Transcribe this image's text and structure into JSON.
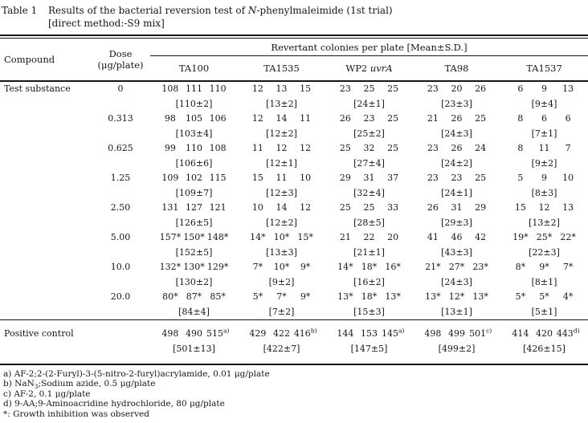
{
  "title": {
    "label": "Table 1",
    "line1_pre": "Results of the bacterial reversion test of ",
    "line1_italic": "N",
    "line1_post": "-phenylmaleimide (1st trial)",
    "line2": "[direct method:-S9 mix]"
  },
  "header": {
    "compound": "Compound",
    "dose_line1": "Dose",
    "dose_line2": "(μg/plate)",
    "span_label": "Revertant colonies per plate [Mean±S.D.]",
    "strains": [
      {
        "plain": "TA100",
        "italic": ""
      },
      {
        "plain": "TA1535",
        "italic": ""
      },
      {
        "plain": "WP2 ",
        "italic": "uvrA"
      },
      {
        "plain": "TA98",
        "italic": ""
      },
      {
        "plain": "TA1537",
        "italic": ""
      }
    ]
  },
  "body": {
    "compound_label": "Test substance",
    "rows": [
      {
        "dose": "0",
        "cells": [
          {
            "values": [
              "108",
              "111",
              "110"
            ],
            "mean": "[110±2]"
          },
          {
            "values": [
              "12",
              "13",
              "15"
            ],
            "mean": "[13±2]"
          },
          {
            "values": [
              "23",
              "25",
              "25"
            ],
            "mean": "[24±1]"
          },
          {
            "values": [
              "23",
              "20",
              "26"
            ],
            "mean": "[23±3]"
          },
          {
            "values": [
              "6",
              "9",
              "13"
            ],
            "mean": "[9±4]"
          }
        ]
      },
      {
        "dose": "0.313",
        "cells": [
          {
            "values": [
              "98",
              "105",
              "106"
            ],
            "mean": "[103±4]"
          },
          {
            "values": [
              "12",
              "14",
              "11"
            ],
            "mean": "[12±2]"
          },
          {
            "values": [
              "26",
              "23",
              "25"
            ],
            "mean": "[25±2]"
          },
          {
            "values": [
              "21",
              "26",
              "25"
            ],
            "mean": "[24±3]"
          },
          {
            "values": [
              "8",
              "6",
              "6"
            ],
            "mean": "[7±1]"
          }
        ]
      },
      {
        "dose": "0.625",
        "cells": [
          {
            "values": [
              "99",
              "110",
              "108"
            ],
            "mean": "[106±6]"
          },
          {
            "values": [
              "11",
              "12",
              "12"
            ],
            "mean": "[12±1]"
          },
          {
            "values": [
              "25",
              "32",
              "25"
            ],
            "mean": "[27±4]"
          },
          {
            "values": [
              "23",
              "26",
              "24"
            ],
            "mean": "[24±2]"
          },
          {
            "values": [
              "8",
              "11",
              "7"
            ],
            "mean": "[9±2]"
          }
        ]
      },
      {
        "dose": "1.25",
        "cells": [
          {
            "values": [
              "109",
              "102",
              "115"
            ],
            "mean": "[109±7]"
          },
          {
            "values": [
              "15",
              "11",
              "10"
            ],
            "mean": "[12±3]"
          },
          {
            "values": [
              "29",
              "31",
              "37"
            ],
            "mean": "[32±4]"
          },
          {
            "values": [
              "23",
              "23",
              "25"
            ],
            "mean": "[24±1]"
          },
          {
            "values": [
              "5",
              "9",
              "10"
            ],
            "mean": "[8±3]"
          }
        ]
      },
      {
        "dose": "2.50",
        "cells": [
          {
            "values": [
              "131",
              "127",
              "121"
            ],
            "mean": "[126±5]"
          },
          {
            "values": [
              "10",
              "14",
              "12"
            ],
            "mean": "[12±2]"
          },
          {
            "values": [
              "25",
              "25",
              "33"
            ],
            "mean": "[28±5]"
          },
          {
            "values": [
              "26",
              "31",
              "29"
            ],
            "mean": "[29±3]"
          },
          {
            "values": [
              "15",
              "12",
              "13"
            ],
            "mean": "[13±2]"
          }
        ]
      },
      {
        "dose": "5.00",
        "cells": [
          {
            "values": [
              "157*",
              "150*",
              "148*"
            ],
            "mean": "[152±5]"
          },
          {
            "values": [
              "14*",
              "10*",
              "15*"
            ],
            "mean": "[13±3]"
          },
          {
            "values": [
              "21",
              "22",
              "20"
            ],
            "mean": "[21±1]"
          },
          {
            "values": [
              "41",
              "46",
              "42"
            ],
            "mean": "[43±3]"
          },
          {
            "values": [
              "19*",
              "25*",
              "22*"
            ],
            "mean": "[22±3]"
          }
        ]
      },
      {
        "dose": "10.0",
        "cells": [
          {
            "values": [
              "132*",
              "130*",
              "129*"
            ],
            "mean": "[130±2]"
          },
          {
            "values": [
              "7*",
              "10*",
              "9*"
            ],
            "mean": "[9±2]"
          },
          {
            "values": [
              "14*",
              "18*",
              "16*"
            ],
            "mean": "[16±2]"
          },
          {
            "values": [
              "21*",
              "27*",
              "23*"
            ],
            "mean": "[24±3]"
          },
          {
            "values": [
              "8*",
              "9*",
              "7*"
            ],
            "mean": "[8±1]"
          }
        ]
      },
      {
        "dose": "20.0",
        "cells": [
          {
            "values": [
              "80*",
              "87*",
              "85*"
            ],
            "mean": "[84±4]"
          },
          {
            "values": [
              "5*",
              "7*",
              "9*"
            ],
            "mean": "[7±2]"
          },
          {
            "values": [
              "13*",
              "18*",
              "13*"
            ],
            "mean": "[15±3]"
          },
          {
            "values": [
              "13*",
              "12*",
              "13*"
            ],
            "mean": "[13±1]"
          },
          {
            "values": [
              "5*",
              "5*",
              "4*"
            ],
            "mean": "[5±1]"
          }
        ]
      }
    ]
  },
  "positive_control": {
    "label": "Positive control",
    "cells": [
      {
        "values": [
          "498",
          "490",
          "515"
        ],
        "sups": [
          "",
          "",
          "a)"
        ],
        "mean": "[501±13]"
      },
      {
        "values": [
          "429",
          "422",
          "416"
        ],
        "sups": [
          "",
          "",
          "b)"
        ],
        "mean": "[422±7]"
      },
      {
        "values": [
          "144",
          "153",
          "145"
        ],
        "sups": [
          "",
          "",
          "a)"
        ],
        "mean": "[147±5]"
      },
      {
        "values": [
          "498",
          "499",
          "501"
        ],
        "sups": [
          "",
          "",
          "c)"
        ],
        "mean": "[499±2]"
      },
      {
        "values": [
          "414",
          "420",
          "443"
        ],
        "sups": [
          "",
          "",
          "d)"
        ],
        "mean": "[426±15]"
      }
    ]
  },
  "footnotes": [
    {
      "pre": "a) AF-2;2-(2-Furyl)-3-(5-nitro-2-furyl)acrylamide, 0.01 μg/plate",
      "sub": "",
      "post": ""
    },
    {
      "pre": "b) NaN",
      "sub": "3",
      "post": ";Sodium azide, 0.5 μg/plate"
    },
    {
      "pre": "c) AF-2, 0.1 μg/plate",
      "sub": "",
      "post": ""
    },
    {
      "pre": "d) 9-AA;9-Aminoacridine hydrochloride, 80 μg/plate",
      "sub": "",
      "post": ""
    },
    {
      "pre": "*: Growth inhibition was observed",
      "sub": "",
      "post": ""
    }
  ]
}
